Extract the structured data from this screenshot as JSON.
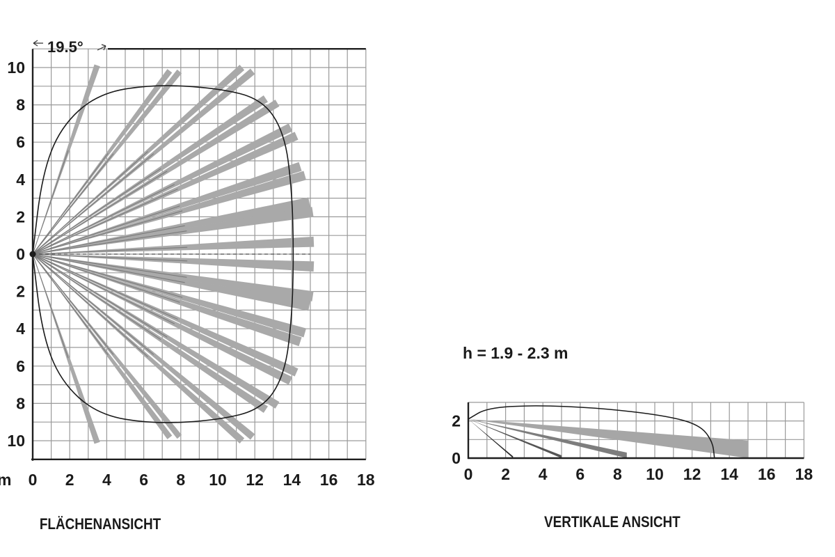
{
  "top_view": {
    "caption": "FLÄCHENANSICHT",
    "unit": "m",
    "angle_label": "19.5°",
    "x_ticks": [
      "0",
      "2",
      "4",
      "6",
      "8",
      "10",
      "12",
      "14",
      "16",
      "18"
    ],
    "y_ticks": [
      "10",
      "8",
      "6",
      "4",
      "2",
      "0",
      "2",
      "4",
      "6",
      "8",
      "10"
    ],
    "x_range_m": [
      0,
      18
    ],
    "y_range_m": [
      -11,
      11
    ],
    "beams": [
      {
        "angle_deg": 71,
        "length_m": 10.7,
        "width_m": 0.32
      },
      {
        "angle_deg": 53,
        "length_m": 12.3,
        "width_m": 0.32
      },
      {
        "angle_deg": 51,
        "length_m": 12.6,
        "width_m": 0.32
      },
      {
        "angle_deg": 41.5,
        "length_m": 15.1,
        "width_m": 0.38
      },
      {
        "angle_deg": 39.5,
        "length_m": 15.4,
        "width_m": 0.38
      },
      {
        "angle_deg": 33.5,
        "length_m": 15.1,
        "width_m": 0.42
      },
      {
        "angle_deg": 31.5,
        "length_m": 15.5,
        "width_m": 0.42
      },
      {
        "angle_deg": 26,
        "length_m": 15.5,
        "width_m": 0.46
      },
      {
        "angle_deg": 24,
        "length_m": 15.6,
        "width_m": 0.46
      },
      {
        "angle_deg": 18,
        "length_m": 15.2,
        "width_m": 0.5
      },
      {
        "angle_deg": 16,
        "length_m": 15.3,
        "width_m": 0.5
      },
      {
        "angle_deg": 10.5,
        "length_m": 15.2,
        "width_m": 0.55
      },
      {
        "angle_deg": 8.5,
        "length_m": 15.3,
        "width_m": 0.55
      },
      {
        "angle_deg": 2.5,
        "length_m": 15.2,
        "width_m": 0.55
      },
      {
        "angle_deg": -2.5,
        "length_m": 15.2,
        "width_m": 0.55
      },
      {
        "angle_deg": -8.5,
        "length_m": 15.3,
        "width_m": 0.55
      },
      {
        "angle_deg": -10.5,
        "length_m": 15.2,
        "width_m": 0.55
      },
      {
        "angle_deg": -16,
        "length_m": 15.3,
        "width_m": 0.5
      },
      {
        "angle_deg": -18,
        "length_m": 15.2,
        "width_m": 0.5
      },
      {
        "angle_deg": -24,
        "length_m": 15.6,
        "width_m": 0.46
      },
      {
        "angle_deg": -26,
        "length_m": 15.5,
        "width_m": 0.46
      },
      {
        "angle_deg": -31.5,
        "length_m": 15.5,
        "width_m": 0.42
      },
      {
        "angle_deg": -33.5,
        "length_m": 15.1,
        "width_m": 0.42
      },
      {
        "angle_deg": -39.5,
        "length_m": 15.4,
        "width_m": 0.38
      },
      {
        "angle_deg": -41.5,
        "length_m": 15.1,
        "width_m": 0.38
      },
      {
        "angle_deg": -51,
        "length_m": 12.6,
        "width_m": 0.32
      },
      {
        "angle_deg": -53,
        "length_m": 12.3,
        "width_m": 0.32
      },
      {
        "angle_deg": -71,
        "length_m": 10.7,
        "width_m": 0.32
      }
    ],
    "coverage_outline_m": [
      [
        0,
        0
      ],
      [
        0.5,
        4.2
      ],
      [
        1.5,
        6.8
      ],
      [
        3.5,
        8.6
      ],
      [
        6.5,
        9.1
      ],
      [
        10,
        8.9
      ],
      [
        12.4,
        8.3
      ],
      [
        13.6,
        6.5
      ],
      [
        14.0,
        3.5
      ],
      [
        14.1,
        0
      ],
      [
        14.0,
        -3.5
      ],
      [
        13.6,
        -6.5
      ],
      [
        12.4,
        -8.3
      ],
      [
        10,
        -8.9
      ],
      [
        6.5,
        -9.1
      ],
      [
        3.5,
        -8.6
      ],
      [
        1.5,
        -6.8
      ],
      [
        0.5,
        -4.2
      ],
      [
        0,
        0
      ]
    ]
  },
  "side_view": {
    "caption": "VERTIKALE ANSICHT",
    "height_label": "h = 1.9 - 2.3 m",
    "x_ticks": [
      "0",
      "2",
      "4",
      "6",
      "8",
      "10",
      "12",
      "14",
      "16",
      "18"
    ],
    "y_ticks": [
      "2",
      "0"
    ],
    "x_range_m": [
      0,
      18
    ],
    "y_range_m": [
      0,
      3
    ],
    "mount_height_m": 2.1,
    "beams": [
      {
        "end_x_m": 15.0,
        "top_m": 0.95,
        "bottom_m": 0.0,
        "color": "#a6a6a6"
      },
      {
        "end_x_m": 8.5,
        "top_m": 0.3,
        "bottom_m": 0.0,
        "color": "#7d7d7d"
      },
      {
        "end_x_m": 5.0,
        "top_m": 0.15,
        "bottom_m": 0.0,
        "color": "#555555"
      },
      {
        "end_x_m": 2.4,
        "top_m": 0.1,
        "bottom_m": 0.0,
        "color": "#2a2a2a"
      }
    ],
    "coverage_outline_m": [
      [
        0,
        2.1
      ],
      [
        1.0,
        2.7
      ],
      [
        3.5,
        2.85
      ],
      [
        7,
        2.7
      ],
      [
        10.5,
        2.3
      ],
      [
        12.4,
        1.8
      ],
      [
        13.1,
        0.9
      ],
      [
        13.2,
        0
      ]
    ]
  }
}
